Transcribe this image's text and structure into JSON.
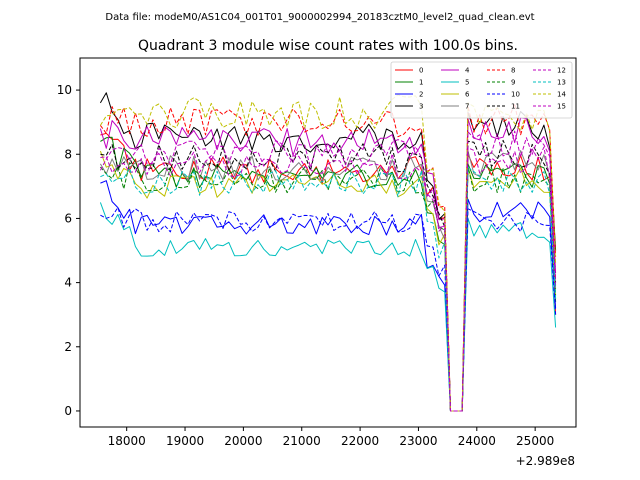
{
  "header": {
    "data_file": "Data file: modeM0/AS1C04_001T01_9000002994_20183cztM0_level2_quad_clean.evt"
  },
  "chart_data": {
    "type": "line",
    "title": "Quadrant 3 module wise count rates with 100.0s bins.",
    "xlabel": "",
    "ylabel": "",
    "x_offset_label": "+2.989e8",
    "xlim": [
      17200,
      25700
    ],
    "ylim": [
      -0.5,
      11.0
    ],
    "xticks": [
      18000,
      19000,
      20000,
      21000,
      22000,
      23000,
      24000,
      25000
    ],
    "xtick_labels": [
      "18000",
      "19000",
      "20000",
      "21000",
      "22000",
      "23000",
      "24000",
      "25000"
    ],
    "yticks": [
      0,
      2,
      4,
      6,
      8,
      10
    ],
    "ytick_labels": [
      "0",
      "2",
      "4",
      "6",
      "8",
      "10"
    ],
    "bin_width_s": 100,
    "x_start": 17550,
    "x_end": 25350,
    "gap": {
      "dip_start": 23350,
      "zero_start": 23550,
      "zero_end": 23750,
      "recover": 23850
    },
    "end_dip": 25350,
    "legend_position": "upper right",
    "series": [
      {
        "name": "0",
        "color": "#ff0000",
        "style": "solid",
        "start": 8.6,
        "base": 7.5,
        "pre_gap": 6.8,
        "post": 7.6,
        "end_value": 3.0
      },
      {
        "name": "1",
        "color": "#008000",
        "style": "solid",
        "start": 8.4,
        "base": 7.3,
        "pre_gap": 6.3,
        "post": 7.3,
        "end_value": 3.4
      },
      {
        "name": "2",
        "color": "#0000ff",
        "style": "solid",
        "start": 7.1,
        "base": 5.8,
        "pre_gap": 4.6,
        "post": 6.2,
        "end_value": 3.2
      },
      {
        "name": "3",
        "color": "#000000",
        "style": "solid",
        "start": 9.6,
        "base": 8.5,
        "pre_gap": 7.0,
        "post": 8.9,
        "end_value": 5.0
      },
      {
        "name": "4",
        "color": "#bf00bf",
        "style": "solid",
        "start": 8.8,
        "base": 8.4,
        "pre_gap": 7.3,
        "post": 8.7,
        "end_value": 4.3
      },
      {
        "name": "5",
        "color": "#00bfbf",
        "style": "solid",
        "start": 6.5,
        "base": 5.1,
        "pre_gap": 4.4,
        "post": 5.6,
        "end_value": 2.6
      },
      {
        "name": "6",
        "color": "#bfbf00",
        "style": "solid",
        "start": 8.1,
        "base": 7.0,
        "pre_gap": 6.3,
        "post": 7.2,
        "end_value": 3.5
      },
      {
        "name": "7",
        "color": "#808080",
        "style": "solid",
        "start": 7.7,
        "base": 7.6,
        "pre_gap": 6.6,
        "post": 7.7,
        "end_value": 3.8
      },
      {
        "name": "8",
        "color": "#ff0000",
        "style": "dashed",
        "start": 8.9,
        "base": 9.0,
        "pre_gap": 7.6,
        "post": 9.1,
        "end_value": 4.8
      },
      {
        "name": "9",
        "color": "#008000",
        "style": "dashed",
        "start": 7.6,
        "base": 7.2,
        "pre_gap": 6.5,
        "post": 7.2,
        "end_value": 3.6
      },
      {
        "name": "10",
        "color": "#0000ff",
        "style": "dashed",
        "start": 6.1,
        "base": 5.9,
        "pre_gap": 5.0,
        "post": 5.9,
        "end_value": 3.0
      },
      {
        "name": "11",
        "color": "#000000",
        "style": "dashed",
        "start": 8.0,
        "base": 7.9,
        "pre_gap": 6.9,
        "post": 8.0,
        "end_value": 4.0
      },
      {
        "name": "12",
        "color": "#bf00bf",
        "style": "dashed",
        "start": 7.9,
        "base": 7.7,
        "pre_gap": 6.7,
        "post": 7.8,
        "end_value": 3.9
      },
      {
        "name": "13",
        "color": "#00bfbf",
        "style": "dashed",
        "start": 7.3,
        "base": 7.1,
        "pre_gap": 5.9,
        "post": 7.2,
        "end_value": 3.5
      },
      {
        "name": "14",
        "color": "#bfbf00",
        "style": "dashed",
        "start": 8.9,
        "base": 9.3,
        "pre_gap": 7.5,
        "post": 9.2,
        "end_value": 4.6
      },
      {
        "name": "15",
        "color": "#bf00bf",
        "style": "dashed",
        "start": 7.5,
        "base": 8.0,
        "pre_gap": 6.8,
        "post": 8.3,
        "end_value": 4.1
      }
    ]
  }
}
